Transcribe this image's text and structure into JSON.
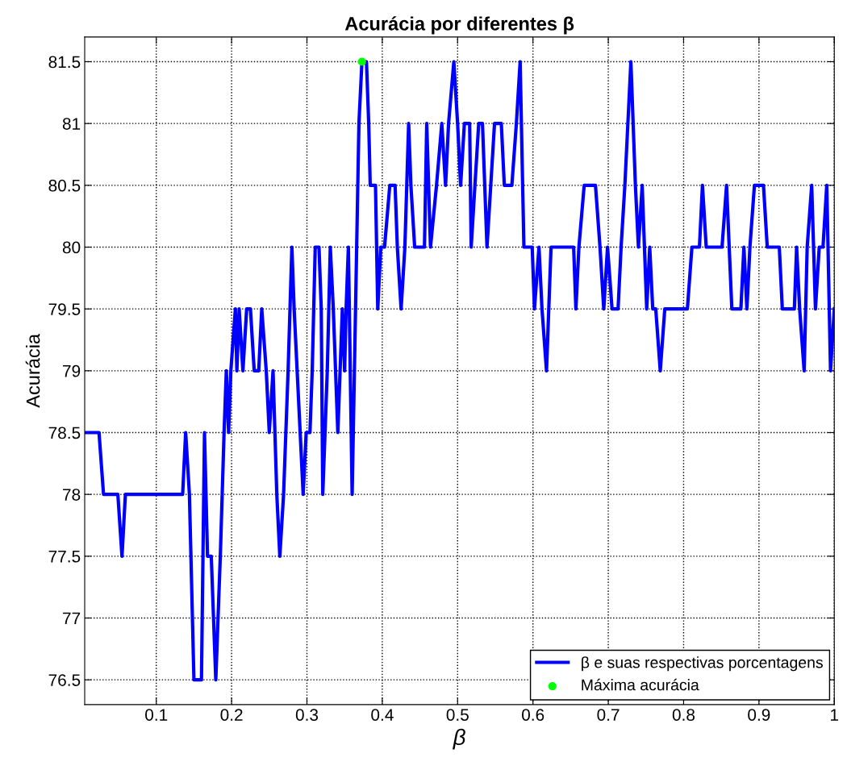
{
  "chart_data": {
    "type": "line",
    "title": "Acurácia por diferentes β",
    "xlabel": "β",
    "ylabel": "Acurácia",
    "xlim": [
      0.005,
      1
    ],
    "ylim": [
      76.3,
      81.7
    ],
    "xticks": [
      0.1,
      0.2,
      0.3,
      0.4,
      0.5,
      0.6,
      0.7,
      0.8,
      0.9,
      1
    ],
    "yticks": [
      76.5,
      77,
      77.5,
      78,
      78.5,
      79,
      79.5,
      80,
      80.5,
      81,
      81.5
    ],
    "grid": true,
    "legend": "bottom right",
    "series": [
      {
        "name": "β e suas respectivas porcentagens",
        "color": "#0000ff",
        "line_style": "solid",
        "marker": "none",
        "x": [
          0.005,
          0.024,
          0.03,
          0.049,
          0.0545,
          0.059,
          0.135,
          0.139,
          0.144,
          0.15,
          0.16,
          0.164,
          0.168,
          0.173,
          0.179,
          0.185,
          0.19,
          0.193,
          0.196,
          0.199,
          0.205,
          0.207,
          0.21,
          0.215,
          0.22,
          0.225,
          0.23,
          0.236,
          0.24,
          0.246,
          0.25,
          0.255,
          0.26,
          0.264,
          0.269,
          0.275,
          0.28,
          0.283,
          0.287,
          0.295,
          0.299,
          0.304,
          0.307,
          0.311,
          0.316,
          0.319,
          0.321,
          0.327,
          0.331,
          0.335,
          0.341,
          0.347,
          0.35,
          0.352,
          0.355,
          0.36,
          0.366,
          0.369,
          0.373,
          0.379,
          0.382,
          0.384,
          0.391,
          0.394,
          0.398,
          0.403,
          0.41,
          0.417,
          0.42,
          0.425,
          0.43,
          0.435,
          0.438,
          0.443,
          0.456,
          0.459,
          0.464,
          0.472,
          0.479,
          0.484,
          0.488,
          0.495,
          0.5,
          0.504,
          0.509,
          0.516,
          0.518,
          0.528,
          0.533,
          0.539,
          0.549,
          0.558,
          0.562,
          0.572,
          0.578,
          0.583,
          0.588,
          0.599,
          0.602,
          0.608,
          0.612,
          0.618,
          0.624,
          0.654,
          0.657,
          0.661,
          0.668,
          0.683,
          0.689,
          0.694,
          0.699,
          0.705,
          0.713,
          0.717,
          0.722,
          0.73,
          0.736,
          0.74,
          0.745,
          0.751,
          0.755,
          0.759,
          0.763,
          0.769,
          0.775,
          0.805,
          0.811,
          0.821,
          0.825,
          0.83,
          0.851,
          0.857,
          0.864,
          0.876,
          0.88,
          0.884,
          0.888,
          0.894,
          0.906,
          0.911,
          0.927,
          0.931,
          0.947,
          0.95,
          0.954,
          0.96,
          0.964,
          0.97,
          0.975,
          0.98,
          0.985,
          0.99,
          0.995,
          1.0
        ],
        "values": [
          78.5,
          78.5,
          78,
          78,
          77.5,
          78,
          78,
          78.5,
          78,
          76.5,
          76.5,
          78.5,
          77.5,
          77.5,
          76.5,
          77.5,
          78.5,
          79,
          78.5,
          79,
          79.5,
          79,
          79.5,
          79,
          79.5,
          79.5,
          79,
          79,
          79.5,
          79,
          78.5,
          79,
          78,
          77.5,
          78,
          79,
          80,
          79.5,
          79,
          78,
          78.5,
          78.5,
          79,
          80,
          80,
          79.5,
          78,
          79,
          80,
          79.5,
          78.5,
          79.5,
          79,
          79.5,
          80,
          78,
          80,
          81,
          81.5,
          81.5,
          81,
          80.5,
          80.5,
          79.5,
          80,
          80,
          80.5,
          80.5,
          80,
          79.5,
          80,
          81,
          80.5,
          80,
          80,
          81,
          80,
          80.5,
          81,
          80.5,
          81,
          81.5,
          81,
          80.5,
          81,
          81,
          80,
          81,
          81,
          80,
          81,
          81,
          80.5,
          80.5,
          81,
          81.5,
          80,
          80,
          79.5,
          80,
          79.5,
          79,
          80,
          80,
          79.5,
          80,
          80.5,
          80.5,
          80,
          79.5,
          80,
          79.5,
          79.5,
          80,
          80.5,
          81.5,
          80.5,
          80,
          80.5,
          79.5,
          80,
          79.5,
          79.5,
          79,
          79.5,
          79.5,
          80,
          80,
          80.5,
          80,
          80,
          80.5,
          79.5,
          79.5,
          80,
          79.5,
          80,
          80.5,
          80.5,
          80,
          80,
          79.5,
          79.5,
          80,
          79.5,
          79,
          80,
          80.5,
          79.5,
          80,
          80,
          80.5,
          79,
          79.5
        ]
      },
      {
        "name": "Máxima acurácia",
        "type": "scatter",
        "color": "#00ff00",
        "marker": "circle",
        "x": [
          0.373
        ],
        "values": [
          81.5
        ]
      }
    ]
  }
}
